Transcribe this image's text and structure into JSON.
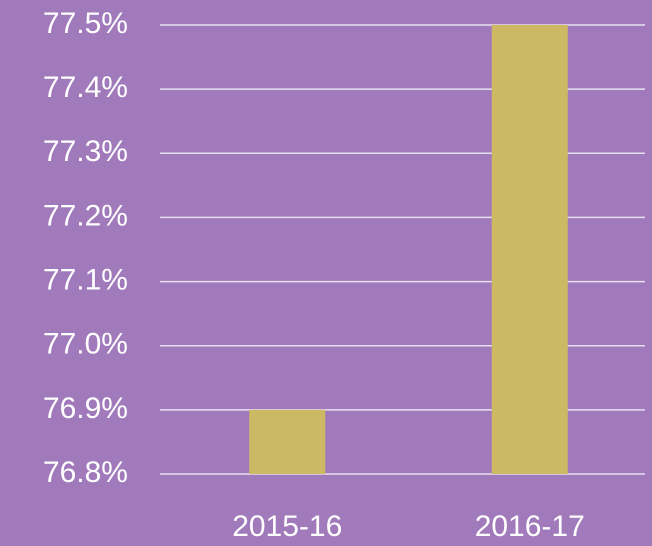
{
  "chart_data": {
    "type": "bar",
    "categories": [
      "2015-16",
      "2016-17"
    ],
    "values": [
      76.9,
      77.5
    ],
    "value_labels": null,
    "color": "#cdb964",
    "background": "#a07abb",
    "ylim": [
      76.8,
      77.5
    ],
    "yticks": [
      {
        "value": 76.8,
        "label": "76.8%"
      },
      {
        "value": 76.9,
        "label": "76.9%"
      },
      {
        "value": 77.0,
        "label": "77.0%"
      },
      {
        "value": 77.1,
        "label": "77.1%"
      },
      {
        "value": 77.2,
        "label": "77.2%"
      },
      {
        "value": 77.3,
        "label": "77.3%"
      },
      {
        "value": 77.4,
        "label": "77.4%"
      },
      {
        "value": 77.5,
        "label": "77.5%"
      }
    ],
    "grid": true
  }
}
